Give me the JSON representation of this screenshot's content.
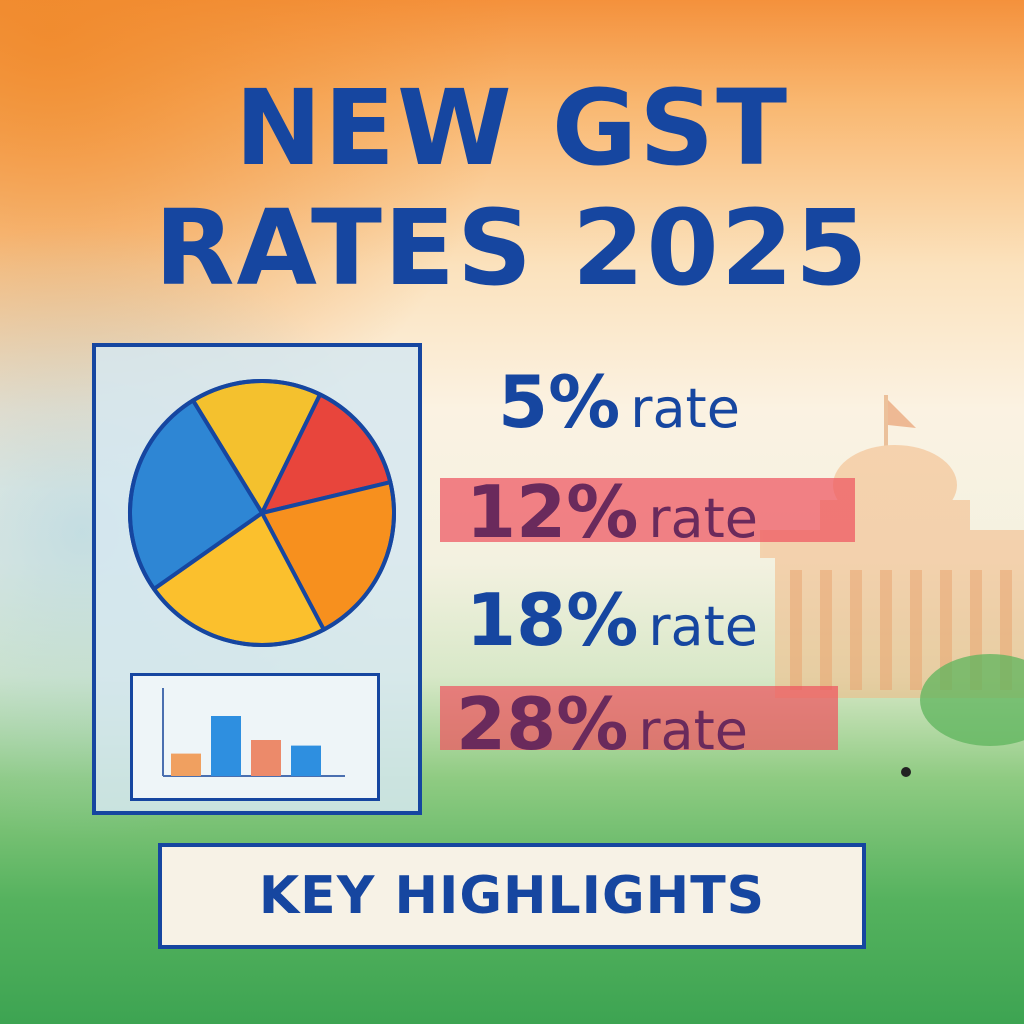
{
  "title": {
    "line1": "NEW GST",
    "line2": "RATES 2025"
  },
  "rates": [
    {
      "percent": "5%",
      "word": "rate",
      "highlighted": false
    },
    {
      "percent": "12%",
      "word": "rate",
      "highlighted": true
    },
    {
      "percent": "18%",
      "word": "rate",
      "highlighted": false
    },
    {
      "percent": "28%",
      "word": "rate",
      "highlighted": true
    }
  ],
  "footer": {
    "label": "KEY HIGHLIGHTS"
  },
  "illustration": {
    "pie_slices": [
      {
        "color": "#f4c12e",
        "fraction": 0.16
      },
      {
        "color": "#e8453c",
        "fraction": 0.14
      },
      {
        "color": "#f7901e",
        "fraction": 0.21
      },
      {
        "color": "#fbc02d",
        "fraction": 0.23
      },
      {
        "color": "#2e86d4",
        "fraction": 0.26
      }
    ],
    "mini_bars": [
      {
        "color": "#f0a060",
        "value": 0.28
      },
      {
        "color": "#2e8fe0",
        "value": 0.75
      },
      {
        "color": "#ec8a6a",
        "value": 0.45
      },
      {
        "color": "#2e8fe0",
        "value": 0.38
      }
    ]
  },
  "colors": {
    "primary": "#1646a0",
    "saffron": "#f5893a",
    "green": "#3ca453",
    "highlight": "#ee5460"
  }
}
